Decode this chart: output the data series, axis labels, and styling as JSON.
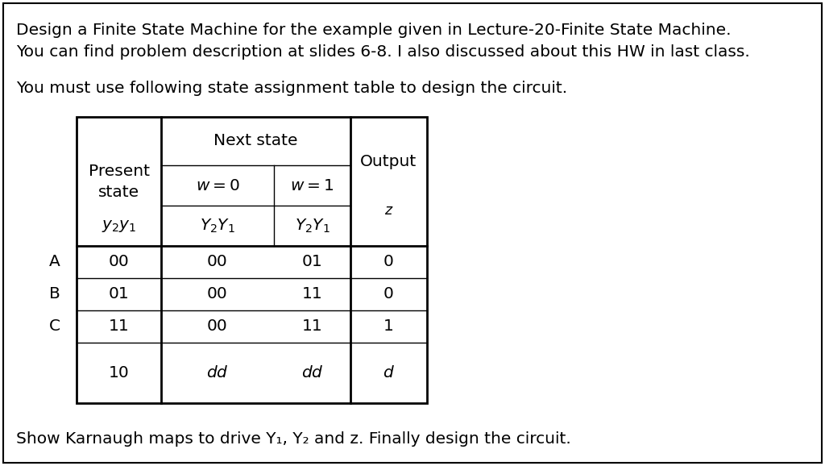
{
  "title_lines": [
    "Design a Finite State Machine for the example given in Lecture-20-Finite State Machine.",
    "You can find problem description at slides 6-8. I also discussed about this HW in last class."
  ],
  "subtitle": "You must use following state assignment table to design the circuit.",
  "footer": "Show Karnaugh maps to drive Y₁, Y₂ and z. Finally design the circuit.",
  "background_color": "#ffffff",
  "border_color": "#000000",
  "text_color": "#000000",
  "table": {
    "row_labels_letter": [
      "A",
      "B",
      "C",
      ""
    ],
    "row_labels_state": [
      "00",
      "01",
      "11",
      "10"
    ],
    "data_w0": [
      "00",
      "00",
      "00",
      "dd"
    ],
    "data_w1": [
      "01",
      "11",
      "11",
      "dd"
    ],
    "data_z": [
      "0",
      "0",
      "1",
      "d"
    ]
  }
}
